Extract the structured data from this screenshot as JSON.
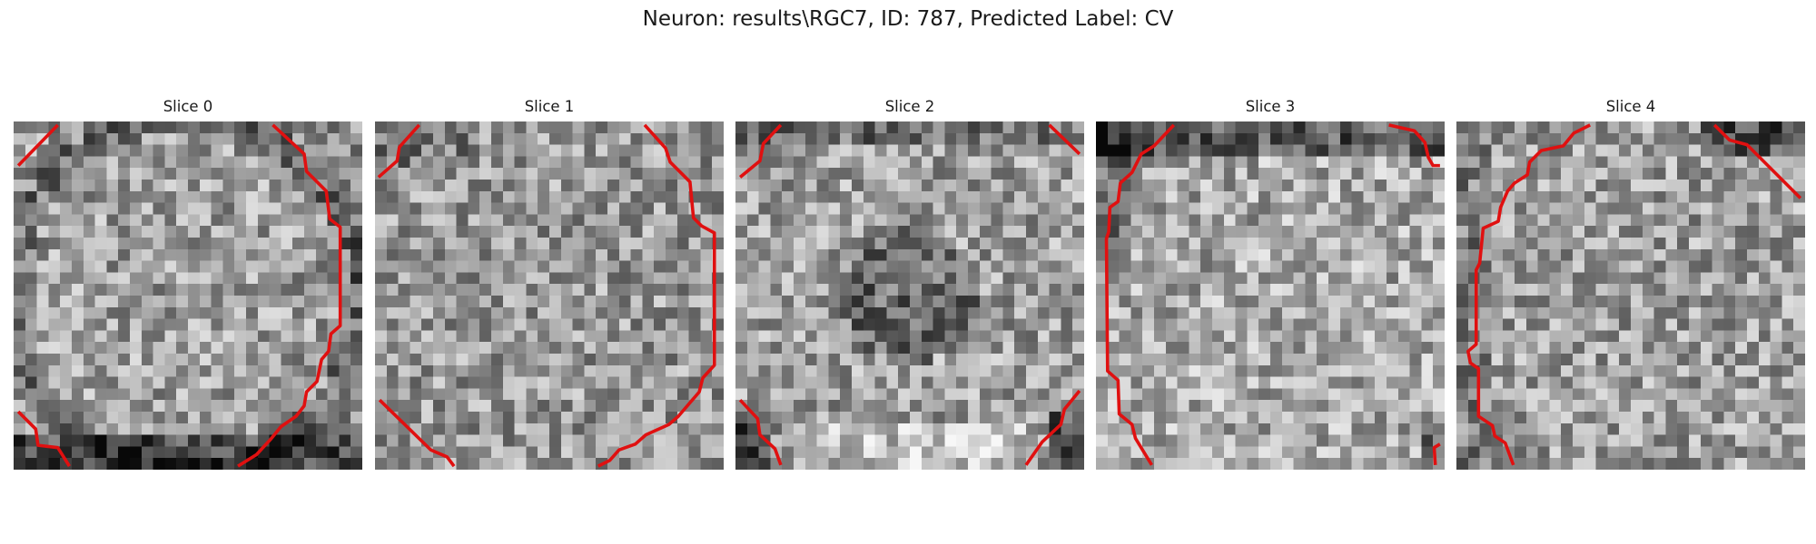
{
  "figure": {
    "title": "Neuron: results\\RGC7, ID: 787, Predicted Label: CV"
  },
  "panels": [
    {
      "title": "Slice 0",
      "seed": 11,
      "pattern": "ring"
    },
    {
      "title": "Slice 1",
      "seed": 23,
      "pattern": "flat"
    },
    {
      "title": "Slice 2",
      "seed": 37,
      "pattern": "dark-center"
    },
    {
      "title": "Slice 3",
      "seed": 51,
      "pattern": "dark-top"
    },
    {
      "title": "Slice 4",
      "seed": 67,
      "pattern": "dark-top-right"
    }
  ],
  "colors": {
    "contour": "#e01010",
    "colormap": "gray"
  }
}
